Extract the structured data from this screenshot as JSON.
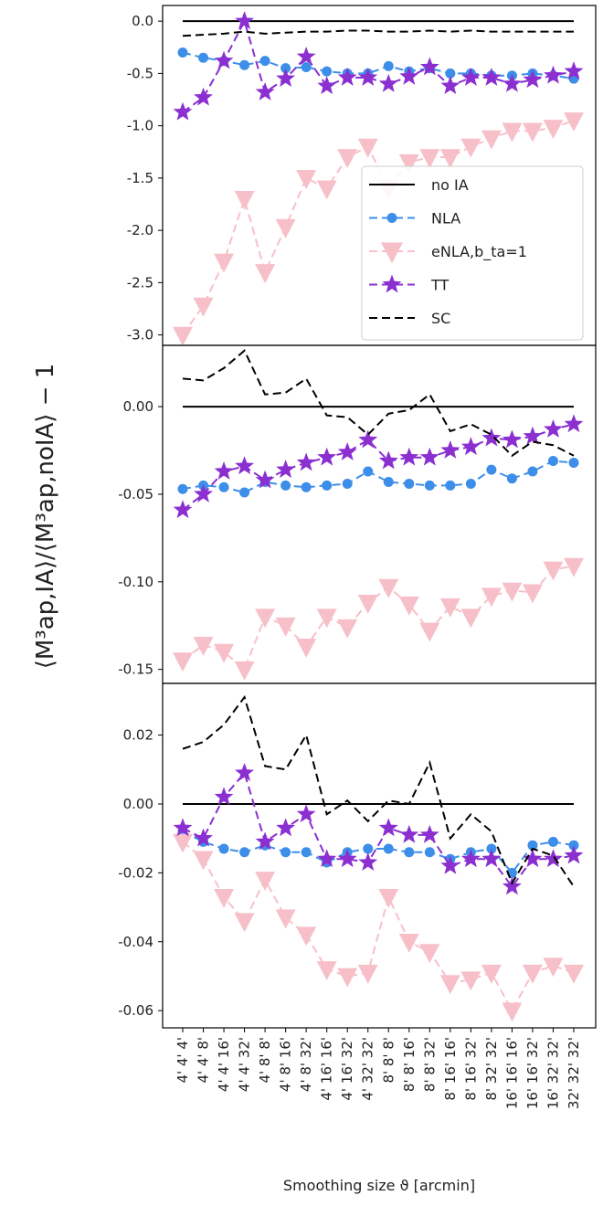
{
  "chart_data": {
    "type": "line",
    "xlabel": "Smoothing size ϑ [arcmin]",
    "ylabel": "⟨M³ap,IA⟩/⟨M³ap,noIA⟩ − 1",
    "categories": [
      "4' 4' 4'",
      "4' 4' 8'",
      "4' 4' 16'",
      "4' 4' 32'",
      "4' 8' 8'",
      "4' 8' 16'",
      "4' 8' 32'",
      "4' 16' 16'",
      "4' 16' 32'",
      "4' 32' 32'",
      "8' 8' 8'",
      "8' 8' 16'",
      "8' 8' 32'",
      "8' 16' 16'",
      "8' 16' 32'",
      "8' 32' 32'",
      "16' 16' 16'",
      "16' 16' 32'",
      "16' 32' 32'",
      "32' 32' 32'"
    ],
    "legend": {
      "placement": "center-right",
      "entries": [
        "no IA",
        "NLA",
        "eNLA,b_ta=1",
        "TT",
        "SC"
      ]
    },
    "panels": [
      {
        "yticks": [
          "0.0",
          "-0.5",
          "-1.0",
          "-1.5",
          "-2.0",
          "-2.5",
          "-3.0"
        ],
        "ylim": [
          -3.1,
          0.15
        ],
        "series": [
          {
            "name": "no IA",
            "color": "#000000",
            "values": [
              0,
              0,
              0,
              0,
              0,
              0,
              0,
              0,
              0,
              0,
              0,
              0,
              0,
              0,
              0,
              0,
              0,
              0,
              0,
              0
            ]
          },
          {
            "name": "NLA",
            "color": "#3c8ee8",
            "values": [
              -0.3,
              -0.35,
              -0.38,
              -0.42,
              -0.38,
              -0.45,
              -0.44,
              -0.48,
              -0.5,
              -0.5,
              -0.43,
              -0.48,
              -0.45,
              -0.5,
              -0.5,
              -0.52,
              -0.52,
              -0.5,
              -0.52,
              -0.55
            ]
          },
          {
            "name": "eNLA,b_ta=1",
            "color": "#f7c0c9",
            "values": [
              -3.0,
              -2.72,
              -2.3,
              -1.7,
              -2.4,
              -1.97,
              -1.5,
              -1.6,
              -1.3,
              -1.2,
              -1.6,
              -1.35,
              -1.3,
              -1.3,
              -1.2,
              -1.12,
              -1.05,
              -1.05,
              -1.02,
              -0.95
            ]
          },
          {
            "name": "TT",
            "color": "#8b2fd0",
            "values": [
              -0.87,
              -0.73,
              -0.38,
              0.0,
              -0.68,
              -0.55,
              -0.34,
              -0.62,
              -0.54,
              -0.54,
              -0.6,
              -0.53,
              -0.44,
              -0.62,
              -0.54,
              -0.54,
              -0.6,
              -0.56,
              -0.52,
              -0.48
            ]
          },
          {
            "name": "SC",
            "color": "#000000",
            "values": [
              -0.14,
              -0.13,
              -0.12,
              -0.1,
              -0.12,
              -0.11,
              -0.1,
              -0.1,
              -0.09,
              -0.09,
              -0.1,
              -0.1,
              -0.09,
              -0.1,
              -0.09,
              -0.1,
              -0.1,
              -0.1,
              -0.1,
              -0.1
            ]
          }
        ]
      },
      {
        "yticks": [
          "0.00",
          "-0.05",
          "-0.10",
          "-0.15"
        ],
        "ylim": [
          -0.158,
          0.035
        ],
        "series": [
          {
            "name": "no IA",
            "color": "#000000",
            "values": [
              0,
              0,
              0,
              0,
              0,
              0,
              0,
              0,
              0,
              0,
              0,
              0,
              0,
              0,
              0,
              0,
              0,
              0,
              0,
              0
            ]
          },
          {
            "name": "NLA",
            "color": "#3c8ee8",
            "values": [
              -0.047,
              -0.045,
              -0.046,
              -0.049,
              -0.043,
              -0.045,
              -0.046,
              -0.045,
              -0.044,
              -0.037,
              -0.043,
              -0.044,
              -0.045,
              -0.045,
              -0.044,
              -0.036,
              -0.041,
              -0.037,
              -0.031,
              -0.032
            ]
          },
          {
            "name": "eNLA,b_ta=1",
            "color": "#f7c0c9",
            "values": [
              -0.145,
              -0.136,
              -0.14,
              -0.15,
              -0.12,
              -0.125,
              -0.137,
              -0.12,
              -0.126,
              -0.112,
              -0.103,
              -0.113,
              -0.128,
              -0.114,
              -0.12,
              -0.108,
              -0.105,
              -0.106,
              -0.093,
              -0.091
            ]
          },
          {
            "name": "TT",
            "color": "#8b2fd0",
            "values": [
              -0.059,
              -0.05,
              -0.037,
              -0.034,
              -0.042,
              -0.036,
              -0.032,
              -0.029,
              -0.026,
              -0.019,
              -0.031,
              -0.029,
              -0.029,
              -0.025,
              -0.023,
              -0.018,
              -0.019,
              -0.017,
              -0.013,
              -0.01
            ]
          },
          {
            "name": "SC",
            "color": "#000000",
            "values": [
              0.016,
              0.015,
              0.022,
              0.032,
              0.007,
              0.008,
              0.016,
              -0.005,
              -0.006,
              -0.016,
              -0.004,
              -0.002,
              0.007,
              -0.014,
              -0.01,
              -0.016,
              -0.028,
              -0.02,
              -0.022,
              -0.028
            ]
          }
        ]
      },
      {
        "yticks": [
          "0.02",
          "0.00",
          "-0.02",
          "-0.04",
          "-0.06"
        ],
        "ylim": [
          -0.065,
          0.035
        ],
        "series": [
          {
            "name": "no IA",
            "color": "#000000",
            "values": [
              0,
              0,
              0,
              0,
              0,
              0,
              0,
              0,
              0,
              0,
              0,
              0,
              0,
              0,
              0,
              0,
              0,
              0,
              0,
              0
            ]
          },
          {
            "name": "NLA",
            "color": "#3c8ee8",
            "values": [
              -0.008,
              -0.011,
              -0.013,
              -0.014,
              -0.012,
              -0.014,
              -0.014,
              -0.017,
              -0.014,
              -0.013,
              -0.013,
              -0.014,
              -0.014,
              -0.016,
              -0.014,
              -0.013,
              -0.02,
              -0.012,
              -0.011,
              -0.012
            ]
          },
          {
            "name": "eNLA,b_ta=1",
            "color": "#f7c0c9",
            "values": [
              -0.011,
              -0.016,
              -0.027,
              -0.034,
              -0.022,
              -0.033,
              -0.038,
              -0.048,
              -0.05,
              -0.049,
              -0.027,
              -0.04,
              -0.043,
              -0.052,
              -0.051,
              -0.049,
              -0.06,
              -0.049,
              -0.047,
              -0.049
            ]
          },
          {
            "name": "TT",
            "color": "#8b2fd0",
            "values": [
              -0.007,
              -0.01,
              0.002,
              0.009,
              -0.011,
              -0.007,
              -0.003,
              -0.016,
              -0.016,
              -0.017,
              -0.007,
              -0.009,
              -0.009,
              -0.018,
              -0.016,
              -0.016,
              -0.024,
              -0.016,
              -0.016,
              -0.015
            ]
          },
          {
            "name": "SC",
            "color": "#000000",
            "values": [
              0.016,
              0.018,
              0.023,
              0.031,
              0.011,
              0.01,
              0.02,
              -0.003,
              0.001,
              -0.005,
              0.001,
              0.0,
              0.012,
              -0.01,
              -0.003,
              -0.008,
              -0.023,
              -0.013,
              -0.015,
              -0.024
            ]
          }
        ]
      }
    ]
  }
}
